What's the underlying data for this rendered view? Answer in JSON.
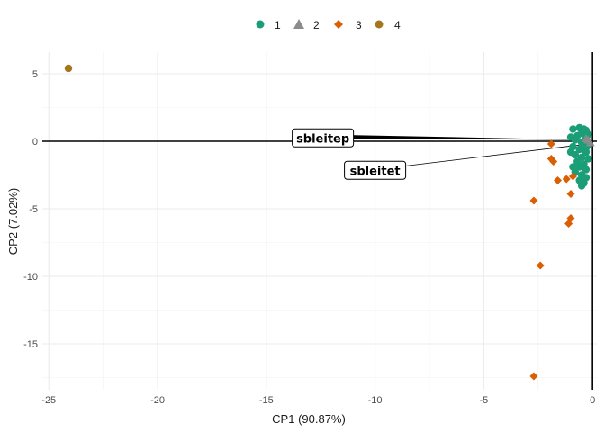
{
  "chart_data": {
    "type": "scatter",
    "xlabel": "CP1 (90.87%)",
    "ylabel": "CP2 (7.02%)",
    "xlim": [
      -25.3,
      0.2
    ],
    "ylim": [
      -18.4,
      6.6
    ],
    "x_ticks": [
      -25,
      -20,
      -15,
      -10,
      -5,
      0
    ],
    "y_ticks": [
      5,
      0,
      -5,
      -10,
      -15
    ],
    "grid": true,
    "legend_position": "top",
    "zero_lines": true,
    "series": [
      {
        "name": "1",
        "color": "#1b9e77",
        "marker": "circle",
        "points": [
          [
            -0.4,
            0.9
          ],
          [
            -0.6,
            1.0
          ],
          [
            -0.3,
            0.8
          ],
          [
            -0.9,
            0.9
          ],
          [
            -0.5,
            0.6
          ],
          [
            -0.2,
            0.5
          ],
          [
            -0.7,
            0.4
          ],
          [
            -0.3,
            0.2
          ],
          [
            -0.8,
            0.1
          ],
          [
            -0.5,
            -0.1
          ],
          [
            -0.2,
            -0.3
          ],
          [
            -0.9,
            -0.4
          ],
          [
            -0.6,
            -0.6
          ],
          [
            -0.3,
            -0.8
          ],
          [
            -0.8,
            -1.0
          ],
          [
            -0.5,
            -1.2
          ],
          [
            -0.2,
            -1.3
          ],
          [
            -0.7,
            -1.5
          ],
          [
            -0.4,
            -1.7
          ],
          [
            -0.6,
            -1.9
          ],
          [
            -0.3,
            -2.1
          ],
          [
            -0.8,
            -2.3
          ],
          [
            -0.5,
            -2.5
          ],
          [
            -0.3,
            -2.7
          ],
          [
            -0.6,
            -2.9
          ],
          [
            -0.4,
            -3.1
          ],
          [
            -0.5,
            -3.3
          ],
          [
            -1.0,
            0.3
          ],
          [
            -1.0,
            -0.8
          ],
          [
            -0.9,
            -1.9
          ],
          [
            -0.4,
            0.0
          ],
          [
            -0.3,
            -0.5
          ]
        ]
      },
      {
        "name": "2",
        "color": "#8c8c8c",
        "marker": "triangle",
        "points": [
          [
            -0.2,
            0.1
          ],
          [
            -0.1,
            -0.1
          ],
          [
            -0.3,
            0.2
          ]
        ]
      },
      {
        "name": "3",
        "color": "#d95f02",
        "marker": "diamond",
        "points": [
          [
            -1.9,
            -0.2
          ],
          [
            -1.9,
            -1.3
          ],
          [
            -1.8,
            -1.5
          ],
          [
            -1.6,
            -2.9
          ],
          [
            -1.2,
            -2.8
          ],
          [
            -0.9,
            -2.6
          ],
          [
            -1.0,
            -3.9
          ],
          [
            -2.7,
            -4.4
          ],
          [
            -1.0,
            -5.7
          ],
          [
            -1.1,
            -6.1
          ],
          [
            -2.4,
            -9.2
          ],
          [
            -2.7,
            -17.4
          ]
        ]
      },
      {
        "name": "4",
        "color": "#a6761d",
        "marker": "circle",
        "points": [
          [
            -24.1,
            5.4
          ]
        ]
      }
    ],
    "loadings": [
      {
        "label": "sbleitep",
        "x_end": -0.2,
        "y_end": 0.1,
        "x_start": -12.4,
        "y_start": 0.4
      },
      {
        "label": "sbleitet",
        "x_end": -0.2,
        "y_end": -0.2,
        "x_start": -10.0,
        "y_start": -2.1
      }
    ]
  }
}
